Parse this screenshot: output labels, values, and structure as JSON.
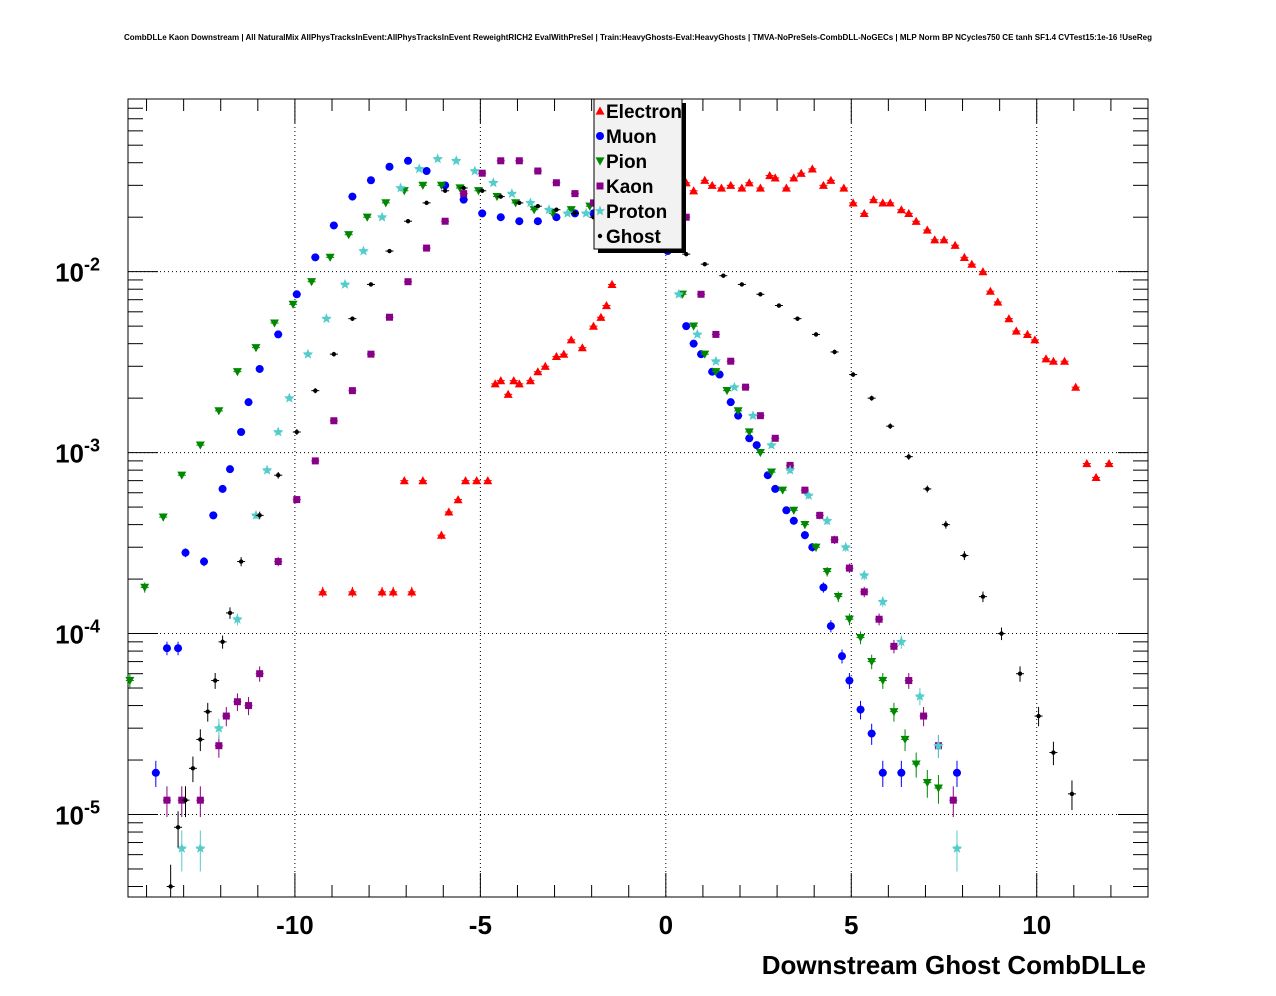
{
  "title": "CombDLLe Kaon Downstream | All NaturalMix AllPhysTracksInEvent:AllPhysTracksInEvent ReweightRICH2 EvalWithPreSel | Train:HeavyGhosts-Eval:HeavyGhosts | TMVA-NoPreSels-CombDLL-NoGECs | MLP Norm BP NCycles750 CE tanh SF1.4 CVTest15:1e-16 !UseReg",
  "chart_data": {
    "type": "scatter",
    "title": "CombDLLe Kaon Downstream | All NaturalMix AllPhysTracksInEvent:AllPhysTracksInEvent ReweightRICH2 EvalWithPreSel | Train:HeavyGhosts-Eval:HeavyGhosts | TMVA-NoPreSels-CombDLL-NoGECs | MLP Norm BP NCycles750 CE tanh SF1.4 CVTest15:1e-16 !UseReg",
    "xlabel": "Downstream Ghost CombDLLe",
    "ylabel": "",
    "xlim": [
      -14.5,
      13
    ],
    "ylim": [
      3.5e-06,
      0.09
    ],
    "yscale": "log",
    "grid": true,
    "legend_position": "top-center",
    "x_ticks": [
      "-10",
      "-5",
      "0",
      "5",
      "10"
    ],
    "y_ticks": [
      {
        "base": "10",
        "exp": "-2",
        "value": 0.01
      },
      {
        "base": "10",
        "exp": "-3",
        "value": 0.001
      },
      {
        "base": "10",
        "exp": "-4",
        "value": 0.0001
      },
      {
        "base": "10",
        "exp": "-5",
        "value": 1e-05
      }
    ],
    "series": [
      {
        "name": "Electron",
        "marker": "triangle-up",
        "color": "#ff0000",
        "x": [
          -9.25,
          -8.45,
          -7.65,
          -7.35,
          -6.85,
          -7.05,
          -6.55,
          -6.05,
          -5.85,
          -5.6,
          -5.4,
          -5.1,
          -4.8,
          -4.6,
          -4.45,
          -4.25,
          -4.1,
          -3.95,
          -3.65,
          -3.45,
          -3.25,
          -2.95,
          -2.75,
          -2.55,
          -2.25,
          -1.95,
          -1.75,
          -1.6,
          -1.45,
          0.25,
          0.55,
          0.75,
          1.05,
          1.25,
          1.5,
          1.75,
          2.05,
          2.25,
          2.55,
          2.8,
          2.95,
          3.25,
          3.45,
          3.65,
          3.95,
          4.25,
          4.45,
          4.8,
          5.05,
          5.35,
          5.6,
          5.85,
          6.05,
          6.35,
          6.55,
          6.75,
          7.05,
          7.25,
          7.5,
          7.8,
          8.05,
          8.25,
          8.55,
          8.75,
          8.95,
          9.25,
          9.45,
          9.75,
          9.95,
          10.25,
          10.45,
          10.75,
          11.05,
          11.35,
          11.6,
          11.95
        ],
        "y": [
          0.00017,
          0.00017,
          0.00017,
          0.00017,
          0.00017,
          0.0007,
          0.0007,
          0.00035,
          0.00047,
          0.00055,
          0.0007,
          0.0007,
          0.0007,
          0.0024,
          0.0025,
          0.0021,
          0.0025,
          0.0024,
          0.0025,
          0.0028,
          0.003,
          0.0034,
          0.0035,
          0.0042,
          0.0038,
          0.005,
          0.0056,
          0.0065,
          0.0085,
          0.028,
          0.031,
          0.028,
          0.032,
          0.03,
          0.029,
          0.03,
          0.029,
          0.031,
          0.029,
          0.034,
          0.033,
          0.029,
          0.033,
          0.035,
          0.037,
          0.03,
          0.032,
          0.029,
          0.024,
          0.021,
          0.025,
          0.024,
          0.024,
          0.022,
          0.021,
          0.019,
          0.017,
          0.015,
          0.015,
          0.014,
          0.012,
          0.011,
          0.01,
          0.0078,
          0.0068,
          0.0055,
          0.0047,
          0.0045,
          0.0042,
          0.0033,
          0.0032,
          0.0032,
          0.0023,
          0.00087,
          0.00073,
          0.00087
        ]
      },
      {
        "name": "Muon",
        "marker": "circle",
        "color": "#0000ff",
        "x": [
          -13.75,
          -13.45,
          -13.15,
          -12.95,
          -12.45,
          -12.2,
          -11.95,
          -11.75,
          -11.45,
          -11.25,
          -10.95,
          -10.45,
          -9.95,
          -9.45,
          -8.95,
          -8.45,
          -7.95,
          -7.45,
          -6.95,
          -6.45,
          -5.95,
          -5.45,
          -4.95,
          -4.45,
          -3.95,
          -3.45,
          -2.95,
          -2.45,
          -1.95,
          -1.45,
          -0.95,
          -0.45,
          0.05,
          0.55,
          0.75,
          0.95,
          1.25,
          1.45,
          1.75,
          1.95,
          2.25,
          2.45,
          2.75,
          2.95,
          3.25,
          3.45,
          3.75,
          3.95,
          4.25,
          4.45,
          4.75,
          4.95,
          5.25,
          5.55,
          5.85,
          6.35,
          7.85
        ],
        "y": [
          1.7e-05,
          8.3e-05,
          8.3e-05,
          0.00028,
          0.00025,
          0.00045,
          0.00063,
          0.00081,
          0.0013,
          0.0019,
          0.0029,
          0.0045,
          0.0075,
          0.012,
          0.018,
          0.026,
          0.032,
          0.038,
          0.041,
          0.036,
          0.03,
          0.025,
          0.021,
          0.02,
          0.019,
          0.019,
          0.02,
          0.021,
          0.021,
          0.021,
          0.022,
          0.016,
          0.013,
          0.005,
          0.004,
          0.0035,
          0.0028,
          0.0027,
          0.0019,
          0.0016,
          0.0012,
          0.0011,
          0.00075,
          0.00063,
          0.00048,
          0.00042,
          0.00035,
          0.0003,
          0.00018,
          0.00011,
          7.5e-05,
          5.5e-05,
          3.8e-05,
          2.8e-05,
          1.7e-05,
          1.7e-05,
          1.7e-05
        ]
      },
      {
        "name": "Pion",
        "marker": "triangle-down",
        "color": "#008800",
        "x": [
          -14.45,
          -14.05,
          -13.55,
          -13.05,
          -12.55,
          -12.05,
          -11.55,
          -11.05,
          -10.55,
          -10.05,
          -9.55,
          -9.05,
          -8.55,
          -8.05,
          -7.55,
          -7.05,
          -6.55,
          -6.05,
          -5.55,
          -5.05,
          -4.55,
          -4.05,
          -3.55,
          -3.05,
          -2.55,
          -2.05,
          -1.55,
          -1.05,
          -0.55,
          -0.05,
          0.45,
          0.75,
          1.05,
          1.35,
          1.65,
          1.95,
          2.25,
          2.55,
          2.85,
          3.15,
          3.45,
          3.75,
          4.05,
          4.35,
          4.65,
          4.95,
          5.25,
          5.55,
          5.85,
          6.15,
          6.45,
          6.75,
          7.05,
          7.35
        ],
        "y": [
          5.5e-05,
          0.00018,
          0.00044,
          0.00075,
          0.0011,
          0.0017,
          0.0028,
          0.0038,
          0.0052,
          0.0066,
          0.0088,
          0.012,
          0.016,
          0.02,
          0.024,
          0.028,
          0.03,
          0.03,
          0.029,
          0.028,
          0.026,
          0.024,
          0.022,
          0.021,
          0.022,
          0.023,
          0.023,
          0.022,
          0.02,
          0.015,
          0.0075,
          0.005,
          0.0035,
          0.0028,
          0.0022,
          0.0017,
          0.0013,
          0.001,
          0.00078,
          0.00062,
          0.00048,
          0.0004,
          0.0003,
          0.00022,
          0.00016,
          0.00012,
          9.5e-05,
          7e-05,
          5.5e-05,
          3.7e-05,
          2.6e-05,
          1.9e-05,
          1.5e-05,
          1.4e-05
        ]
      },
      {
        "name": "Kaon",
        "marker": "square",
        "color": "#880088",
        "x": [
          -13.45,
          -13.05,
          -12.55,
          -12.05,
          -11.85,
          -11.55,
          -11.25,
          -10.95,
          -10.45,
          -9.95,
          -9.45,
          -8.95,
          -8.45,
          -7.95,
          -7.45,
          -6.95,
          -6.45,
          -5.95,
          -5.45,
          -4.95,
          -4.45,
          -3.95,
          -3.45,
          -2.95,
          -2.45,
          -1.95,
          -1.45,
          -0.95,
          -0.45,
          0.05,
          0.55,
          0.95,
          1.35,
          1.75,
          2.15,
          2.55,
          2.95,
          3.35,
          3.75,
          4.15,
          4.55,
          4.95,
          5.35,
          5.75,
          6.15,
          6.55,
          6.95,
          7.35,
          7.75
        ],
        "y": [
          1.2e-05,
          1.2e-05,
          1.2e-05,
          2.4e-05,
          3.5e-05,
          4.2e-05,
          4e-05,
          6e-05,
          0.00025,
          0.00055,
          0.0009,
          0.0015,
          0.0022,
          0.0035,
          0.0056,
          0.0088,
          0.0135,
          0.019,
          0.027,
          0.035,
          0.041,
          0.041,
          0.036,
          0.031,
          0.027,
          0.024,
          0.022,
          0.021,
          0.022,
          0.022,
          0.02,
          0.0075,
          0.0045,
          0.0032,
          0.0023,
          0.0016,
          0.0012,
          0.00085,
          0.00062,
          0.00045,
          0.00033,
          0.00023,
          0.00017,
          0.00012,
          8.5e-05,
          5.5e-05,
          3.5e-05,
          2.4e-05,
          1.2e-05
        ]
      },
      {
        "name": "Proton",
        "marker": "star",
        "color": "#55cccc",
        "x": [
          -13.05,
          -12.55,
          -12.05,
          -11.55,
          -11.05,
          -10.75,
          -10.45,
          -10.15,
          -9.65,
          -9.15,
          -8.65,
          -8.15,
          -7.65,
          -7.15,
          -6.65,
          -6.15,
          -5.65,
          -5.15,
          -4.65,
          -4.15,
          -3.65,
          -3.15,
          -2.65,
          -2.15,
          -1.65,
          -1.15,
          -0.65,
          -0.15,
          0.35,
          0.85,
          1.35,
          1.85,
          2.35,
          2.85,
          3.35,
          3.85,
          4.35,
          4.85,
          5.35,
          5.85,
          6.35,
          6.85,
          7.35,
          7.85
        ],
        "y": [
          6.5e-06,
          6.5e-06,
          3e-05,
          0.00012,
          0.00045,
          0.0008,
          0.0013,
          0.002,
          0.0035,
          0.0055,
          0.0085,
          0.013,
          0.02,
          0.029,
          0.037,
          0.042,
          0.041,
          0.036,
          0.031,
          0.027,
          0.024,
          0.022,
          0.021,
          0.021,
          0.022,
          0.022,
          0.021,
          0.019,
          0.0075,
          0.0045,
          0.0032,
          0.0023,
          0.0016,
          0.0011,
          0.0008,
          0.00058,
          0.00042,
          0.0003,
          0.00021,
          0.00015,
          9e-05,
          4.5e-05,
          2.4e-05,
          6.5e-06
        ]
      },
      {
        "name": "Ghost",
        "marker": "small",
        "color": "#000000",
        "x": [
          -13.35,
          -13.15,
          -12.95,
          -12.75,
          -12.55,
          -12.35,
          -12.15,
          -11.95,
          -11.75,
          -11.45,
          -10.95,
          -10.45,
          -9.95,
          -9.45,
          -8.95,
          -8.45,
          -7.95,
          -7.45,
          -6.95,
          -6.45,
          -5.95,
          -5.45,
          -4.95,
          -4.45,
          -3.95,
          -3.45,
          -2.95,
          -2.45,
          -1.95,
          -1.45,
          -0.95,
          -0.45,
          0.05,
          0.55,
          1.05,
          1.55,
          2.05,
          2.55,
          3.05,
          3.55,
          4.05,
          4.55,
          5.05,
          5.55,
          6.05,
          6.55,
          7.05,
          7.55,
          8.05,
          8.55,
          9.05,
          9.55,
          10.05,
          10.45,
          10.95
        ],
        "y": [
          4e-06,
          8.5e-06,
          1.2e-05,
          1.8e-05,
          2.6e-05,
          3.7e-05,
          5.5e-05,
          9e-05,
          0.00013,
          0.00025,
          0.00045,
          0.00075,
          0.0013,
          0.0022,
          0.0035,
          0.0055,
          0.0085,
          0.013,
          0.019,
          0.024,
          0.028,
          0.029,
          0.028,
          0.026,
          0.024,
          0.023,
          0.022,
          0.021,
          0.02,
          0.019,
          0.018,
          0.016,
          0.0145,
          0.0125,
          0.011,
          0.0095,
          0.0085,
          0.0075,
          0.0065,
          0.0055,
          0.0045,
          0.0036,
          0.0027,
          0.002,
          0.0014,
          0.00095,
          0.00063,
          0.0004,
          0.00027,
          0.00016,
          0.0001,
          6e-05,
          3.5e-05,
          2.2e-05,
          1.3e-05
        ]
      }
    ]
  }
}
